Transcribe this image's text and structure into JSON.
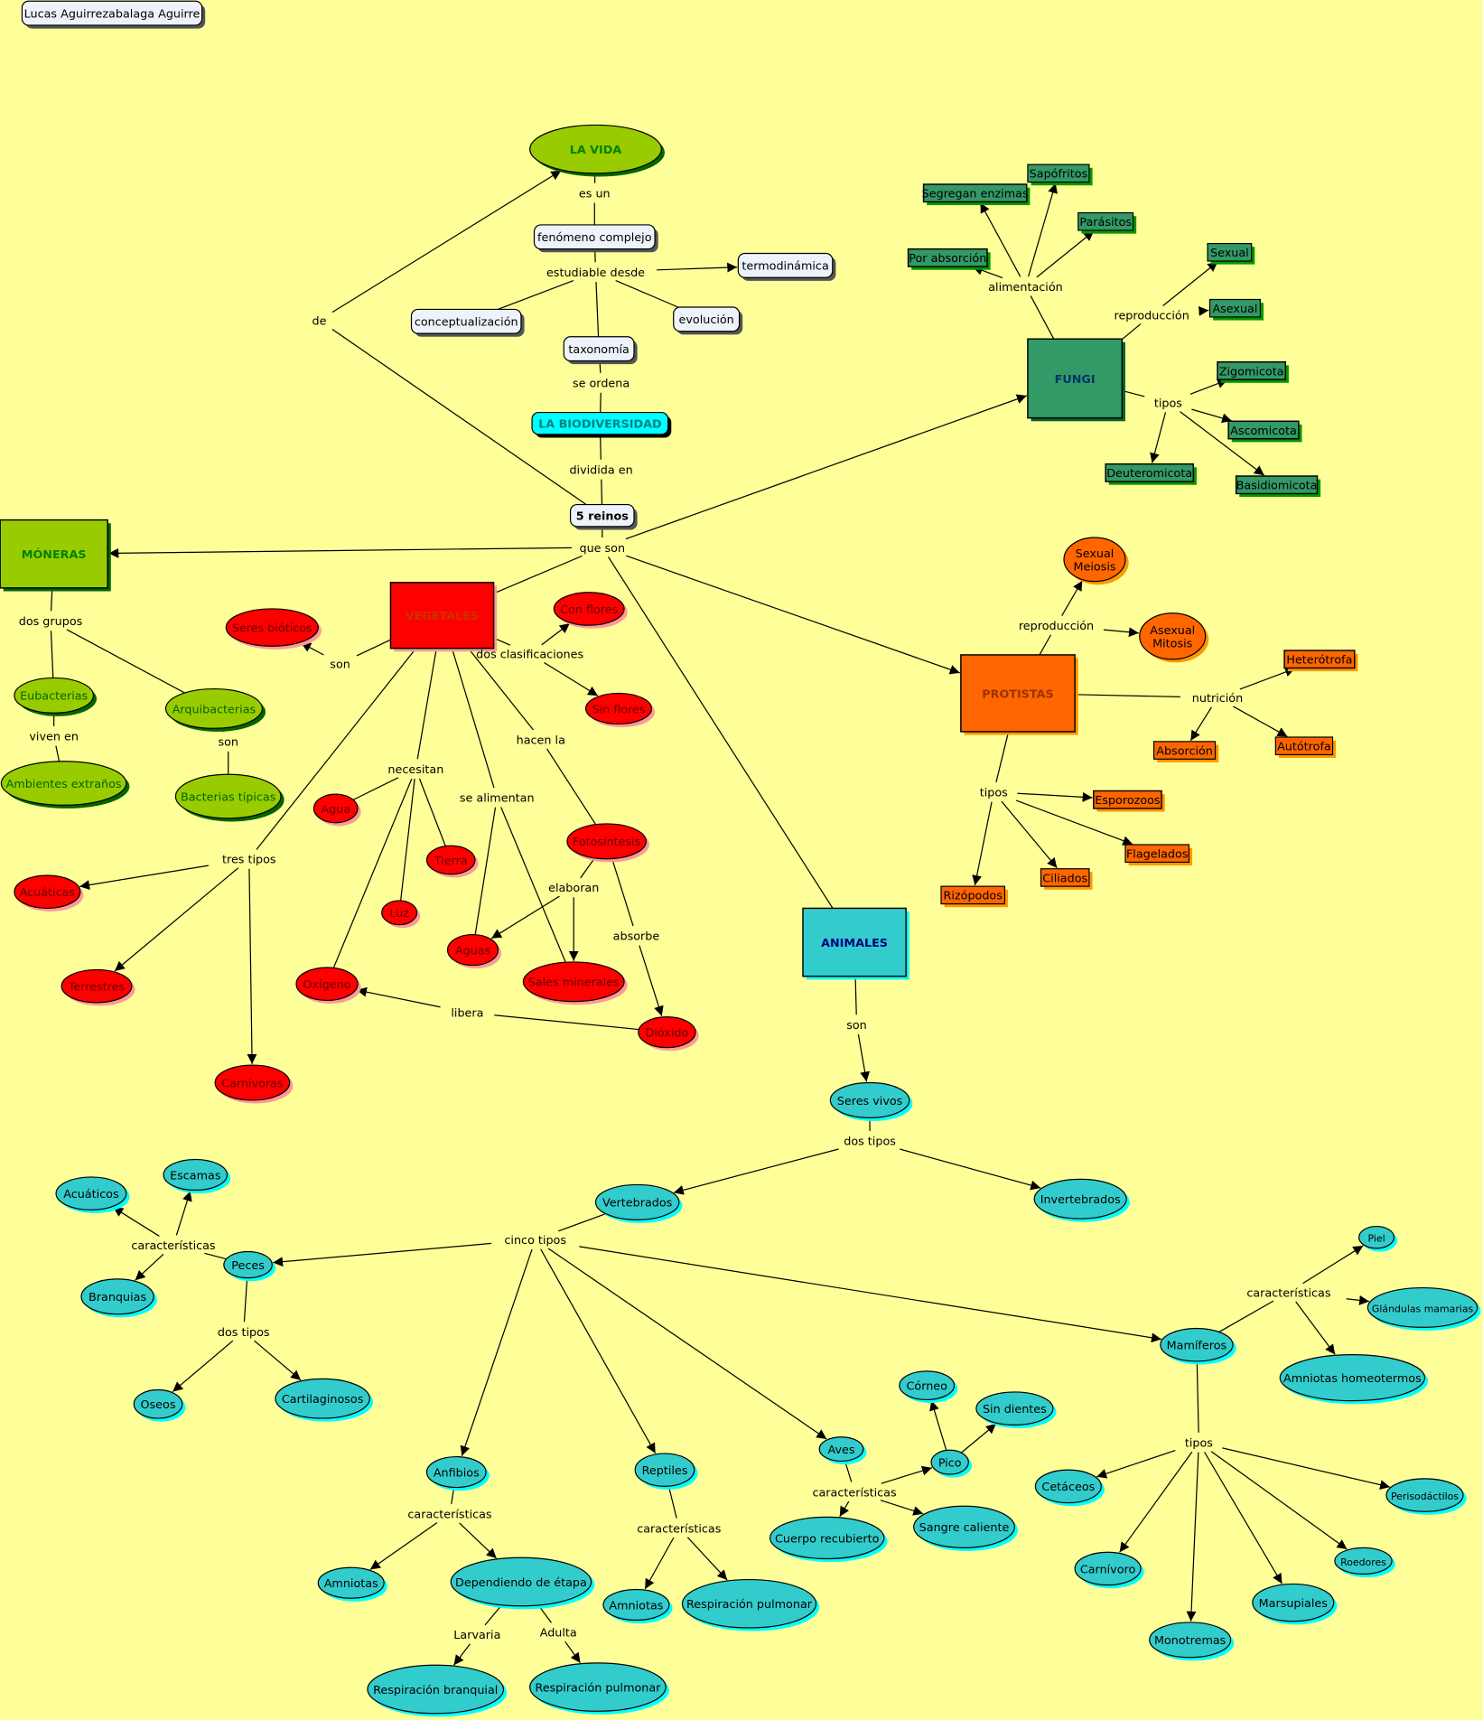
{
  "title": "LA VIDA",
  "author": "Lucas Aguirrezabalaga Aguirre",
  "colors": {
    "background": "#ffff99",
    "moneras": "#99cc00",
    "vegetales": "#ff0000",
    "fungi": "#339966",
    "protistas": "#ff6600",
    "animales": "#33cccc",
    "biodiversidad": "#00ffff",
    "neutral": "#eef3fb"
  },
  "nodes": {
    "author": "Lucas Aguirrezabalaga Aguirre",
    "vida": "LA VIDA",
    "es_un": "es un",
    "fenomeno": "fenómeno complejo",
    "estudiable": "estudiable desde",
    "termo": "termodinámica",
    "concept": "conceptualización",
    "evolucion": "evolución",
    "taxonomia": "taxonomía",
    "se_ordena": "se ordena",
    "biodiv": "LA BIODIVERSIDAD",
    "dividida": "dividida en",
    "de": "de",
    "reinos": "5 reinos",
    "que_son": "que son",
    "moneras": "MÓNERAS",
    "vegetales": "VEGETALES",
    "fungi": "FUNGI",
    "protistas": "PROTISTAS",
    "animales": "ANIMALES",
    "alimentacion": "alimentación",
    "por_absorcion": "Por absorción",
    "segregan": "Segregan enzimas",
    "sapofritos": "Sapófritos",
    "parasitos": "Parásitos",
    "reprod_f": "reproducción",
    "sexual_f": "Sexual",
    "asexual_f": "Asexual",
    "tipos_f": "tipos",
    "zigomicota": "Zigomicota",
    "ascomicota": "Ascomicota",
    "deuteromicota": "Deuteromicota",
    "basidiomicota": "Basidiomicota",
    "dos_grupos": "dos grupos",
    "eubacterias": "Eubacterias",
    "arquibacterias": "Arquibacterias",
    "viven_en": "viven en",
    "ambientes": "Ambientes extraños",
    "son_m": "son",
    "bacterias": "Bacterias típicas",
    "son_v": "son",
    "seres_bioticos": "Seres bióticos",
    "dos_clasif": "dos clasificaciones",
    "con_flores": "Con flores",
    "sin_flores": "Sin flores",
    "hacen_la": "hacen la",
    "fotosintesis": "Fotosíntesis",
    "necesitan": "necesitan",
    "agua": "Agua",
    "tierra": "Tierra",
    "luz": "Luz",
    "oxigeno": "Oxígeno",
    "se_alimentan": "se alimentan",
    "aguas": "Aguas",
    "sales": "Sales minerales",
    "elaboran": "elaboran",
    "absorbe": "absorbe",
    "dioxido": "Dióxido",
    "libera": "libera",
    "tres_tipos": "tres tipos",
    "acuaticas": "Acuáticas",
    "terrestres": "Terrestres",
    "carnivoras": "Carnívoras",
    "reprod_p": "reproducción",
    "sexual_p": [
      "Sexual",
      "Meiosis"
    ],
    "asexual_p": [
      "Asexual",
      "Mitosis"
    ],
    "nutricion": "nutrición",
    "heterotrofa": "Heterótrofa",
    "absorcion_p": "Absorción",
    "autotrofa": "Autótrofa",
    "tipos_p": "tipos",
    "esporozoos": "Esporozoos",
    "flagelados": "Flagelados",
    "ciliados": "Ciliados",
    "rizopodos": "Rizópodos",
    "son_a": "son",
    "seres_vivos": "Seres vivos",
    "dos_tipos_a": "dos tipos",
    "vertebrados": "Vertebrados",
    "invertebrados": "Invertebrados",
    "cinco_tipos": "cinco tipos",
    "peces": "Peces",
    "carac_peces": "características",
    "acuaticos": "Acuáticos",
    "escamas": "Escamas",
    "branquias": "Branquias",
    "dos_tipos_p": "dos tipos",
    "oseos": "Oseos",
    "cartilaginosos": "Cartilaginosos",
    "anfibios": "Anfibios",
    "carac_anf": "características",
    "amniotas_anf": "Amniotas",
    "dependiendo": "Dependiendo de étapa",
    "larvaria": "Larvaria",
    "adulta": "Adulta",
    "resp_branquial": "Respiración branquial",
    "resp_pulmonar_anf": "Respiración pulmonar",
    "reptiles": "Reptiles",
    "carac_rep": "características",
    "amniotas_rep": "Amniotas",
    "resp_pulmonar_rep": "Respiración pulmonar",
    "aves": "Aves",
    "carac_aves": "características",
    "pico": "Pico",
    "corneo": "Córneo",
    "sin_dientes": "Sin dientes",
    "cuerpo": "Cuerpo recubierto",
    "sangre": "Sangre caliente",
    "mamiferos": "Mamíferos",
    "carac_mam": "características",
    "piel": "Piel",
    "glandulas": "Glándulas mamarias",
    "amniotas_homeo": "Amniotas homeotermos",
    "tipos_mam": "tipos",
    "cetaceos": "Cetáceos",
    "carnivoro": "Carnívoro",
    "monotremas": "Monotremas",
    "marsupiales": "Marsupiales",
    "roedores": "Roedores",
    "perisodactilos": "Perisodáctilos"
  },
  "edges": [
    [
      "vida",
      "es_un",
      0
    ],
    [
      "es_un",
      "fenomeno",
      0
    ],
    [
      "fenomeno",
      "estudiable",
      0
    ],
    [
      "estudiable",
      "termo",
      1
    ],
    [
      "estudiable",
      "concept",
      0
    ],
    [
      "estudiable",
      "evolucion",
      0
    ],
    [
      "estudiable",
      "taxonomia",
      0
    ],
    [
      "taxonomia",
      "se_ordena",
      0
    ],
    [
      "se_ordena",
      "biodiv",
      0
    ],
    [
      "biodiv",
      "dividida",
      0
    ],
    [
      "dividida",
      "reinos",
      0
    ],
    [
      "reinos",
      "de",
      0
    ],
    [
      "de",
      "vida",
      1
    ],
    [
      "reinos",
      "que_son",
      0
    ],
    [
      "que_son",
      "moneras",
      1
    ],
    [
      "que_son",
      "vegetales",
      0
    ],
    [
      "que_son",
      "fungi",
      1
    ],
    [
      "que_son",
      "protistas",
      1
    ],
    [
      "que_son",
      "animales",
      0
    ],
    [
      "fungi",
      "alimentacion",
      0
    ],
    [
      "alimentacion",
      "por_absorcion",
      1
    ],
    [
      "alimentacion",
      "segregan",
      1
    ],
    [
      "alimentacion",
      "sapofritos",
      1
    ],
    [
      "alimentacion",
      "parasitos",
      1
    ],
    [
      "fungi",
      "reprod_f",
      0
    ],
    [
      "reprod_f",
      "sexual_f",
      1
    ],
    [
      "reprod_f",
      "asexual_f",
      1
    ],
    [
      "fungi",
      "tipos_f",
      0
    ],
    [
      "tipos_f",
      "zigomicota",
      1
    ],
    [
      "tipos_f",
      "ascomicota",
      1
    ],
    [
      "tipos_f",
      "deuteromicota",
      1
    ],
    [
      "tipos_f",
      "basidiomicota",
      1
    ],
    [
      "moneras",
      "dos_grupos",
      0
    ],
    [
      "dos_grupos",
      "eubacterias",
      0
    ],
    [
      "dos_grupos",
      "arquibacterias",
      0
    ],
    [
      "eubacterias",
      "viven_en",
      0
    ],
    [
      "viven_en",
      "ambientes",
      0
    ],
    [
      "arquibacterias",
      "son_m",
      0
    ],
    [
      "son_m",
      "bacterias",
      0
    ],
    [
      "vegetales",
      "son_v",
      0
    ],
    [
      "son_v",
      "seres_bioticos",
      1
    ],
    [
      "vegetales",
      "dos_clasif",
      0
    ],
    [
      "dos_clasif",
      "con_flores",
      1
    ],
    [
      "dos_clasif",
      "sin_flores",
      1
    ],
    [
      "vegetales",
      "hacen_la",
      0
    ],
    [
      "hacen_la",
      "fotosintesis",
      0
    ],
    [
      "vegetales",
      "necesitan",
      0
    ],
    [
      "necesitan",
      "agua",
      0
    ],
    [
      "necesitan",
      "tierra",
      0
    ],
    [
      "necesitan",
      "luz",
      0
    ],
    [
      "necesitan",
      "oxigeno",
      0
    ],
    [
      "vegetales",
      "se_alimentan",
      0
    ],
    [
      "se_alimentan",
      "aguas",
      0
    ],
    [
      "se_alimentan",
      "sales",
      0
    ],
    [
      "fotosintesis",
      "elaboran",
      0
    ],
    [
      "elaboran",
      "aguas",
      1
    ],
    [
      "elaboran",
      "sales",
      1
    ],
    [
      "fotosintesis",
      "absorbe",
      0
    ],
    [
      "absorbe",
      "dioxido",
      1
    ],
    [
      "dioxido",
      "libera",
      0
    ],
    [
      "libera",
      "oxigeno",
      1
    ],
    [
      "vegetales",
      "tres_tipos",
      0
    ],
    [
      "tres_tipos",
      "acuaticas",
      1
    ],
    [
      "tres_tipos",
      "terrestres",
      1
    ],
    [
      "tres_tipos",
      "carnivoras",
      1
    ],
    [
      "protistas",
      "reprod_p",
      0
    ],
    [
      "reprod_p",
      "sexual_p",
      1
    ],
    [
      "reprod_p",
      "asexual_p",
      1
    ],
    [
      "protistas",
      "nutricion",
      0
    ],
    [
      "nutricion",
      "heterotrofa",
      1
    ],
    [
      "nutricion",
      "absorcion_p",
      1
    ],
    [
      "nutricion",
      "autotrofa",
      1
    ],
    [
      "protistas",
      "tipos_p",
      0
    ],
    [
      "tipos_p",
      "esporozoos",
      1
    ],
    [
      "tipos_p",
      "flagelados",
      1
    ],
    [
      "tipos_p",
      "ciliados",
      1
    ],
    [
      "tipos_p",
      "rizopodos",
      1
    ],
    [
      "animales",
      "son_a",
      0
    ],
    [
      "son_a",
      "seres_vivos",
      1
    ],
    [
      "seres_vivos",
      "dos_tipos_a",
      0
    ],
    [
      "dos_tipos_a",
      "vertebrados",
      1
    ],
    [
      "dos_tipos_a",
      "invertebrados",
      1
    ],
    [
      "vertebrados",
      "cinco_tipos",
      0
    ],
    [
      "cinco_tipos",
      "peces",
      1
    ],
    [
      "cinco_tipos",
      "anfibios",
      1
    ],
    [
      "cinco_tipos",
      "reptiles",
      1
    ],
    [
      "cinco_tipos",
      "aves",
      1
    ],
    [
      "cinco_tipos",
      "mamiferos",
      1
    ],
    [
      "peces",
      "carac_peces",
      0
    ],
    [
      "carac_peces",
      "acuaticos",
      1
    ],
    [
      "carac_peces",
      "escamas",
      1
    ],
    [
      "carac_peces",
      "branquias",
      1
    ],
    [
      "peces",
      "dos_tipos_p",
      0
    ],
    [
      "dos_tipos_p",
      "oseos",
      1
    ],
    [
      "dos_tipos_p",
      "cartilaginosos",
      1
    ],
    [
      "anfibios",
      "carac_anf",
      0
    ],
    [
      "carac_anf",
      "amniotas_anf",
      1
    ],
    [
      "carac_anf",
      "dependiendo",
      1
    ],
    [
      "dependiendo",
      "larvaria",
      0
    ],
    [
      "larvaria",
      "resp_branquial",
      1
    ],
    [
      "dependiendo",
      "adulta",
      0
    ],
    [
      "adulta",
      "resp_pulmonar_anf",
      1
    ],
    [
      "reptiles",
      "carac_rep",
      0
    ],
    [
      "carac_rep",
      "amniotas_rep",
      1
    ],
    [
      "carac_rep",
      "resp_pulmonar_rep",
      1
    ],
    [
      "aves",
      "carac_aves",
      0
    ],
    [
      "carac_aves",
      "pico",
      1
    ],
    [
      "carac_aves",
      "cuerpo",
      1
    ],
    [
      "carac_aves",
      "sangre",
      1
    ],
    [
      "pico",
      "corneo",
      1
    ],
    [
      "pico",
      "sin_dientes",
      1
    ],
    [
      "mamiferos",
      "carac_mam",
      0
    ],
    [
      "carac_mam",
      "piel",
      1
    ],
    [
      "carac_mam",
      "glandulas",
      1
    ],
    [
      "carac_mam",
      "amniotas_homeo",
      1
    ],
    [
      "mamiferos",
      "tipos_mam",
      0
    ],
    [
      "tipos_mam",
      "cetaceos",
      1
    ],
    [
      "tipos_mam",
      "carnivoro",
      1
    ],
    [
      "tipos_mam",
      "monotremas",
      1
    ],
    [
      "tipos_mam",
      "marsupiales",
      1
    ],
    [
      "tipos_mam",
      "roedores",
      1
    ],
    [
      "tipos_mam",
      "perisodactilos",
      1
    ]
  ]
}
